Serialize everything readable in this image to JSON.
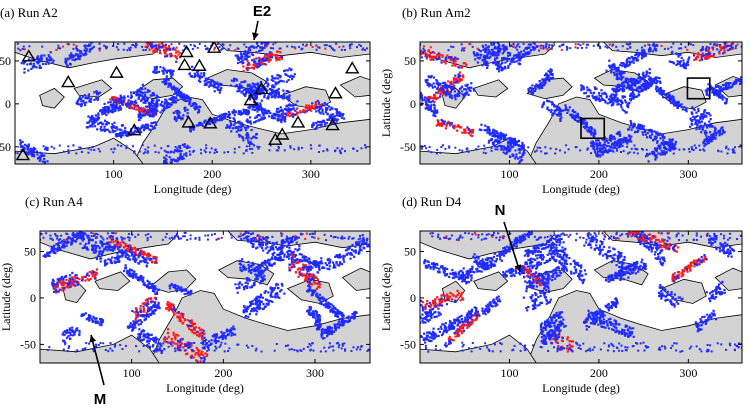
{
  "figure": {
    "colors": {
      "land": "#d3d3d3",
      "land_edge": "#000000",
      "blue": "#1f2bff",
      "red": "#ff1a1a",
      "frame": "#000000"
    }
  },
  "chart_data": [
    {
      "type": "scatter",
      "title": "(a) Run A2",
      "xlabel": "Longitude (deg)",
      "ylabel": "Latitude (deg)",
      "xlim": [
        0,
        360
      ],
      "ylim": [
        -70,
        72
      ],
      "xticks": [
        "100",
        "200",
        "300"
      ],
      "yticks": [
        "50",
        "0",
        "-50"
      ],
      "series": [
        {
          "name": "",
          "color": "blue",
          "approximate": true
        },
        {
          "name": "",
          "color": "red",
          "approximate": true
        }
      ],
      "triangles": [
        {
          "x": 14,
          "y": 55
        },
        {
          "x": 54,
          "y": 25
        },
        {
          "x": 103,
          "y": 36
        },
        {
          "x": 121,
          "y": -31
        },
        {
          "x": 174,
          "y": 60
        },
        {
          "x": 172,
          "y": 45
        },
        {
          "x": 187,
          "y": 44
        },
        {
          "x": 202,
          "y": 65
        },
        {
          "x": 250,
          "y": 17
        },
        {
          "x": 239,
          "y": 4
        },
        {
          "x": 176,
          "y": -22
        },
        {
          "x": 198,
          "y": -23
        },
        {
          "x": 271,
          "y": -36
        },
        {
          "x": 264,
          "y": -42
        },
        {
          "x": 287,
          "y": -22
        },
        {
          "x": 322,
          "y": -25
        },
        {
          "x": 325,
          "y": 12
        },
        {
          "x": 342,
          "y": 41
        },
        {
          "x": 8,
          "y": -60
        }
      ],
      "annotations": [
        {
          "text": "E2",
          "x": 250,
          "y": 70
        }
      ]
    },
    {
      "type": "scatter",
      "title": "(b) Run Am2",
      "xlabel": "Longitude (deg)",
      "ylabel": "Latitude (deg)",
      "xlim": [
        0,
        360
      ],
      "ylim": [
        -70,
        72
      ],
      "xticks": [
        "100",
        "200",
        "300"
      ],
      "yticks": [
        "50",
        "0",
        "-50"
      ],
      "series": [
        {
          "name": "",
          "color": "blue",
          "approximate": true
        },
        {
          "name": "",
          "color": "red",
          "approximate": true
        }
      ],
      "boxes": [
        {
          "x0": 180,
          "x1": 206,
          "y0": -40,
          "y1": -17
        },
        {
          "x0": 299,
          "x1": 324,
          "y0": 6,
          "y1": 30
        }
      ]
    },
    {
      "type": "scatter",
      "title": "(c) Run A4",
      "xlabel": "Longitude (deg)",
      "ylabel": "Latitude (deg)",
      "xlim": [
        0,
        360
      ],
      "ylim": [
        -70,
        72
      ],
      "xticks": [
        "100",
        "200",
        "300"
      ],
      "yticks": [
        "50",
        "0",
        "-50"
      ],
      "series": [
        {
          "name": "",
          "color": "blue",
          "approximate": true
        },
        {
          "name": "",
          "color": "red",
          "approximate": true
        }
      ],
      "annotations": [
        {
          "text": "M",
          "x": 55,
          "y": -35
        }
      ]
    },
    {
      "type": "scatter",
      "title": "(d) Run D4",
      "xlabel": "Longitude (deg)",
      "ylabel": "Latitude (deg)",
      "xlim": [
        0,
        360
      ],
      "ylim": [
        -70,
        72
      ],
      "xticks": [
        "100",
        "200",
        "300"
      ],
      "yticks": [
        "50",
        "0",
        "-50"
      ],
      "series": [
        {
          "name": "",
          "color": "blue",
          "approximate": true
        },
        {
          "name": "",
          "color": "red",
          "approximate": true
        }
      ],
      "annotations": [
        {
          "text": "N",
          "x": 110,
          "y": 35
        }
      ]
    }
  ]
}
